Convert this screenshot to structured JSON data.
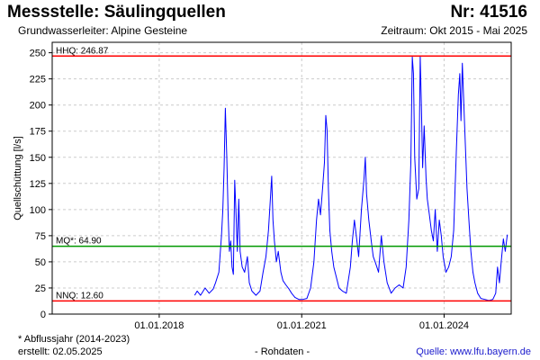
{
  "header": {
    "title": "Messstelle: Säulingquellen",
    "number": "Nr: 41516",
    "aquifer": "Grundwasserleiter: Alpine Gesteine",
    "period": "Zeitraum: Okt 2015 - Mai 2025"
  },
  "footer": {
    "footnote": "* Abflussjahr (2014-2023)",
    "created": "erstellt:  02.05.2025",
    "raw_data": "- Rohdaten -",
    "source": "Quelle: www.lfu.bayern.de"
  },
  "chart_data": {
    "type": "line",
    "title": "Messstelle: Säulingquellen",
    "ylabel": "Quellschüttung [l/s]",
    "xlabel": "",
    "xlim": [
      "2015-10-01",
      "2025-05-31"
    ],
    "ylim": [
      0,
      260
    ],
    "yticks": [
      0,
      25,
      50,
      75,
      100,
      125,
      150,
      175,
      200,
      225,
      250
    ],
    "xticks": [
      "01.01.2018",
      "01.01.2021",
      "01.01.2024"
    ],
    "grid": true,
    "colors": {
      "series": "#0000ff",
      "hhq": "#ff0000",
      "mq": "#009900",
      "nnq": "#ff0000"
    },
    "reference_lines": [
      {
        "label": "HHQ: 246.87",
        "value": 246.87,
        "color": "#ff0000"
      },
      {
        "label": "MQ*: 64.90",
        "value": 64.9,
        "color": "#009900"
      },
      {
        "label": "NNQ: 12.60",
        "value": 12.6,
        "color": "#ff0000"
      }
    ],
    "series": [
      {
        "values": [
          [
            "2018-10-01",
            18
          ],
          [
            "2018-10-20",
            22
          ],
          [
            "2018-11-15",
            18
          ],
          [
            "2018-12-20",
            25
          ],
          [
            "2019-01-20",
            20
          ],
          [
            "2019-02-20",
            24
          ],
          [
            "2019-03-10",
            30
          ],
          [
            "2019-04-05",
            40
          ],
          [
            "2019-04-25",
            75
          ],
          [
            "2019-05-05",
            100
          ],
          [
            "2019-05-15",
            140
          ],
          [
            "2019-05-25",
            197
          ],
          [
            "2019-06-05",
            150
          ],
          [
            "2019-06-15",
            95
          ],
          [
            "2019-06-25",
            60
          ],
          [
            "2019-07-05",
            70
          ],
          [
            "2019-07-15",
            45
          ],
          [
            "2019-07-25",
            38
          ],
          [
            "2019-08-05",
            128
          ],
          [
            "2019-08-15",
            95
          ],
          [
            "2019-08-25",
            60
          ],
          [
            "2019-09-05",
            110
          ],
          [
            "2019-09-15",
            60
          ],
          [
            "2019-10-01",
            45
          ],
          [
            "2019-10-20",
            40
          ],
          [
            "2019-11-10",
            55
          ],
          [
            "2019-11-25",
            30
          ],
          [
            "2019-12-15",
            22
          ],
          [
            "2020-01-15",
            18
          ],
          [
            "2020-02-15",
            22
          ],
          [
            "2020-03-10",
            40
          ],
          [
            "2020-04-01",
            55
          ],
          [
            "2020-04-20",
            80
          ],
          [
            "2020-05-05",
            110
          ],
          [
            "2020-05-15",
            132
          ],
          [
            "2020-05-25",
            90
          ],
          [
            "2020-06-05",
            70
          ],
          [
            "2020-06-20",
            50
          ],
          [
            "2020-07-05",
            60
          ],
          [
            "2020-07-25",
            40
          ],
          [
            "2020-08-10",
            32
          ],
          [
            "2020-09-01",
            28
          ],
          [
            "2020-09-25",
            24
          ],
          [
            "2020-10-15",
            20
          ],
          [
            "2020-11-10",
            16
          ],
          [
            "2020-12-10",
            14
          ],
          [
            "2021-01-10",
            14
          ],
          [
            "2021-02-10",
            15
          ],
          [
            "2021-03-10",
            25
          ],
          [
            "2021-04-05",
            50
          ],
          [
            "2021-04-25",
            90
          ],
          [
            "2021-05-10",
            110
          ],
          [
            "2021-05-25",
            95
          ],
          [
            "2021-06-10",
            120
          ],
          [
            "2021-06-25",
            145
          ],
          [
            "2021-07-05",
            190
          ],
          [
            "2021-07-15",
            176
          ],
          [
            "2021-07-25",
            120
          ],
          [
            "2021-08-05",
            80
          ],
          [
            "2021-08-20",
            60
          ],
          [
            "2021-09-05",
            45
          ],
          [
            "2021-09-25",
            35
          ],
          [
            "2021-10-15",
            25
          ],
          [
            "2021-11-10",
            22
          ],
          [
            "2021-12-10",
            20
          ],
          [
            "2022-01-10",
            45
          ],
          [
            "2022-01-25",
            70
          ],
          [
            "2022-02-10",
            90
          ],
          [
            "2022-02-25",
            75
          ],
          [
            "2022-03-15",
            55
          ],
          [
            "2022-04-05",
            100
          ],
          [
            "2022-04-25",
            130
          ],
          [
            "2022-05-05",
            150
          ],
          [
            "2022-05-15",
            115
          ],
          [
            "2022-06-01",
            90
          ],
          [
            "2022-06-20",
            70
          ],
          [
            "2022-07-05",
            55
          ],
          [
            "2022-07-25",
            48
          ],
          [
            "2022-08-15",
            40
          ],
          [
            "2022-09-05",
            75
          ],
          [
            "2022-09-25",
            50
          ],
          [
            "2022-10-20",
            30
          ],
          [
            "2022-11-20",
            20
          ],
          [
            "2022-12-20",
            25
          ],
          [
            "2023-01-20",
            28
          ],
          [
            "2023-02-20",
            25
          ],
          [
            "2023-03-15",
            45
          ],
          [
            "2023-04-05",
            90
          ],
          [
            "2023-04-20",
            145
          ],
          [
            "2023-05-01",
            246
          ],
          [
            "2023-05-10",
            230
          ],
          [
            "2023-05-20",
            150
          ],
          [
            "2023-06-05",
            110
          ],
          [
            "2023-06-20",
            120
          ],
          [
            "2023-07-01",
            247
          ],
          [
            "2023-07-10",
            200
          ],
          [
            "2023-07-20",
            140
          ],
          [
            "2023-08-01",
            180
          ],
          [
            "2023-08-15",
            130
          ],
          [
            "2023-08-25",
            110
          ],
          [
            "2023-09-10",
            95
          ],
          [
            "2023-09-25",
            80
          ],
          [
            "2023-10-10",
            70
          ],
          [
            "2023-10-25",
            100
          ],
          [
            "2023-11-10",
            60
          ],
          [
            "2023-11-25",
            90
          ],
          [
            "2023-12-10",
            75
          ],
          [
            "2023-12-25",
            55
          ],
          [
            "2024-01-15",
            40
          ],
          [
            "2024-02-05",
            45
          ],
          [
            "2024-02-25",
            55
          ],
          [
            "2024-03-15",
            80
          ],
          [
            "2024-04-05",
            160
          ],
          [
            "2024-04-20",
            210
          ],
          [
            "2024-05-01",
            230
          ],
          [
            "2024-05-10",
            185
          ],
          [
            "2024-05-20",
            240
          ],
          [
            "2024-06-01",
            200
          ],
          [
            "2024-06-10",
            170
          ],
          [
            "2024-06-25",
            120
          ],
          [
            "2024-07-10",
            90
          ],
          [
            "2024-07-25",
            60
          ],
          [
            "2024-08-10",
            40
          ],
          [
            "2024-08-25",
            30
          ],
          [
            "2024-09-15",
            20
          ],
          [
            "2024-10-10",
            15
          ],
          [
            "2024-11-10",
            14
          ],
          [
            "2024-12-10",
            13
          ],
          [
            "2025-01-10",
            14
          ],
          [
            "2025-02-01",
            20
          ],
          [
            "2025-02-15",
            45
          ],
          [
            "2025-03-01",
            30
          ],
          [
            "2025-03-15",
            50
          ],
          [
            "2025-04-01",
            72
          ],
          [
            "2025-04-15",
            60
          ],
          [
            "2025-05-01",
            76
          ]
        ]
      }
    ]
  }
}
